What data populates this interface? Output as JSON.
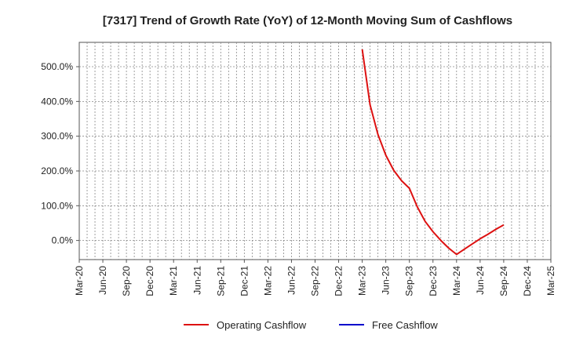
{
  "chart_data": {
    "type": "line",
    "title": "[7317]  Trend of Growth Rate (YoY) of 12-Month Moving Sum of Cashflows",
    "xlabel": "",
    "ylabel": "",
    "x_ticks": [
      "Mar-20",
      "Jun-20",
      "Sep-20",
      "Dec-20",
      "Mar-21",
      "Jun-21",
      "Sep-21",
      "Dec-21",
      "Mar-22",
      "Jun-22",
      "Sep-22",
      "Dec-22",
      "Mar-23",
      "Jun-23",
      "Sep-23",
      "Dec-23",
      "Mar-24",
      "Jun-24",
      "Sep-24",
      "Dec-24",
      "Mar-25"
    ],
    "y_ticks": [
      0,
      100,
      200,
      300,
      400,
      500
    ],
    "y_tick_labels": [
      "0.0%",
      "100.0%",
      "200.0%",
      "300.0%",
      "400.0%",
      "500.0%"
    ],
    "ylim": [
      -55,
      570
    ],
    "grid": true,
    "legend_position": "bottom",
    "series": [
      {
        "name": "Operating Cashflow",
        "color": "#dd1111",
        "points": [
          {
            "x": "Mar-23",
            "y": 550
          },
          {
            "x": "Apr-23",
            "y": 390
          },
          {
            "x": "May-23",
            "y": 305
          },
          {
            "x": "Jun-23",
            "y": 245
          },
          {
            "x": "Jul-23",
            "y": 202
          },
          {
            "x": "Aug-23",
            "y": 172
          },
          {
            "x": "Sep-23",
            "y": 150
          },
          {
            "x": "Oct-23",
            "y": 97
          },
          {
            "x": "Nov-23",
            "y": 55
          },
          {
            "x": "Dec-23",
            "y": 25
          },
          {
            "x": "Jan-24",
            "y": 0
          },
          {
            "x": "Feb-24",
            "y": -22
          },
          {
            "x": "Mar-24",
            "y": -40
          },
          {
            "x": "Apr-24",
            "y": -25
          },
          {
            "x": "May-24",
            "y": -10
          },
          {
            "x": "Jun-24",
            "y": 5
          },
          {
            "x": "Jul-24",
            "y": 18
          },
          {
            "x": "Aug-24",
            "y": 32
          },
          {
            "x": "Sep-24",
            "y": 45
          }
        ]
      },
      {
        "name": "Free Cashflow",
        "color": "#0000cc",
        "points": []
      }
    ]
  }
}
